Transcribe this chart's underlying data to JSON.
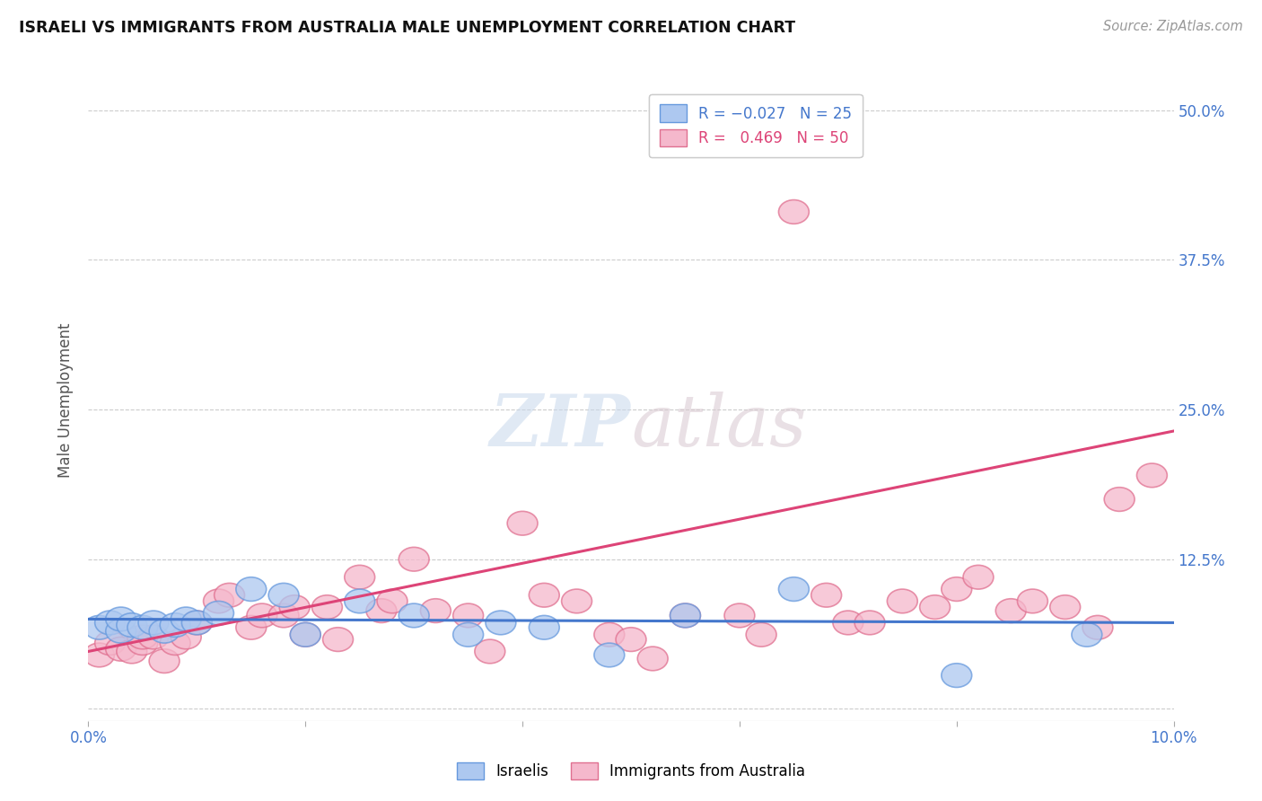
{
  "title": "ISRAELI VS IMMIGRANTS FROM AUSTRALIA MALE UNEMPLOYMENT CORRELATION CHART",
  "source": "Source: ZipAtlas.com",
  "ylabel": "Male Unemployment",
  "xlim": [
    0.0,
    0.1
  ],
  "ylim": [
    -0.01,
    0.525
  ],
  "ytick_positions": [
    0.0,
    0.125,
    0.25,
    0.375,
    0.5
  ],
  "yticklabels": [
    "",
    "12.5%",
    "25.0%",
    "37.5%",
    "50.0%"
  ],
  "background_color": "#ffffff",
  "israelis_fill": "#adc8f0",
  "israelis_edge": "#6699dd",
  "australia_fill": "#f5b8cc",
  "australia_edge": "#e07090",
  "trend_israeli_color": "#4477cc",
  "trend_australia_color": "#dd4477",
  "R_israeli": -0.027,
  "N_israeli": 25,
  "R_australia": 0.469,
  "N_australia": 50,
  "israeli_x": [
    0.001,
    0.002,
    0.003,
    0.003,
    0.004,
    0.005,
    0.006,
    0.007,
    0.008,
    0.009,
    0.01,
    0.012,
    0.015,
    0.018,
    0.02,
    0.025,
    0.03,
    0.035,
    0.038,
    0.042,
    0.048,
    0.055,
    0.065,
    0.08,
    0.092
  ],
  "israeli_y": [
    0.068,
    0.072,
    0.065,
    0.075,
    0.07,
    0.068,
    0.072,
    0.065,
    0.07,
    0.075,
    0.072,
    0.08,
    0.1,
    0.095,
    0.062,
    0.09,
    0.078,
    0.062,
    0.072,
    0.068,
    0.045,
    0.078,
    0.1,
    0.028,
    0.062
  ],
  "australia_x": [
    0.001,
    0.002,
    0.003,
    0.004,
    0.005,
    0.005,
    0.006,
    0.007,
    0.008,
    0.009,
    0.01,
    0.012,
    0.013,
    0.015,
    0.016,
    0.018,
    0.019,
    0.02,
    0.022,
    0.023,
    0.025,
    0.027,
    0.028,
    0.03,
    0.032,
    0.035,
    0.037,
    0.04,
    0.042,
    0.045,
    0.048,
    0.05,
    0.052,
    0.055,
    0.06,
    0.062,
    0.065,
    0.068,
    0.07,
    0.072,
    0.075,
    0.078,
    0.08,
    0.082,
    0.085,
    0.087,
    0.09,
    0.093,
    0.095,
    0.098
  ],
  "australia_y": [
    0.045,
    0.055,
    0.05,
    0.048,
    0.055,
    0.06,
    0.06,
    0.04,
    0.055,
    0.06,
    0.072,
    0.09,
    0.095,
    0.068,
    0.078,
    0.078,
    0.085,
    0.062,
    0.085,
    0.058,
    0.11,
    0.082,
    0.09,
    0.125,
    0.082,
    0.078,
    0.048,
    0.155,
    0.095,
    0.09,
    0.062,
    0.058,
    0.042,
    0.078,
    0.078,
    0.062,
    0.415,
    0.095,
    0.072,
    0.072,
    0.09,
    0.085,
    0.1,
    0.11,
    0.082,
    0.09,
    0.085,
    0.068,
    0.175,
    0.195
  ],
  "trend_aus_y0": 0.048,
  "trend_aus_y1": 0.232,
  "trend_isr_y0": 0.075,
  "trend_isr_y1": 0.072
}
